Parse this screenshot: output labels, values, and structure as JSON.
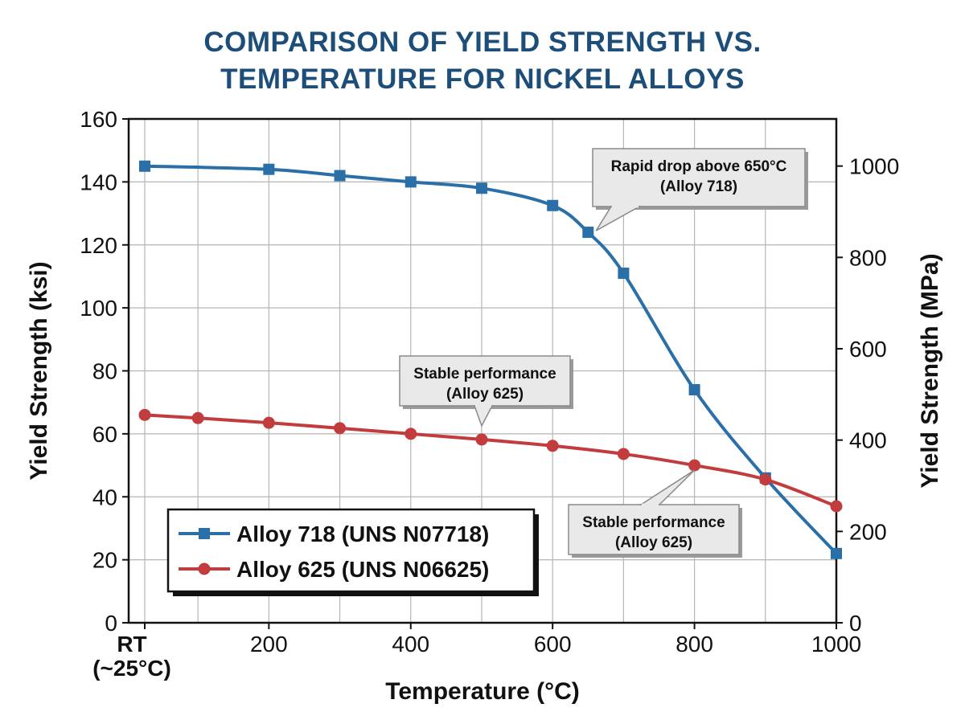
{
  "chart_data": {
    "type": "line",
    "title": [
      "COMPARISON OF YIELD STRENGTH VS.",
      "TEMPERATURE FOR NICKEL ALLOYS"
    ],
    "xlabel": "Temperature (°C)",
    "ylabel": "Yield Strength (ksi)",
    "y2label": "Yield Strength (MPa)",
    "xlim": [
      0,
      1000
    ],
    "ylim": [
      0,
      160
    ],
    "y2lim": [
      0,
      1103.2
    ],
    "x_ticks": [
      {
        "value": 25,
        "label": [
          "RT",
          "(~25°C)"
        ]
      },
      {
        "value": 200,
        "label": [
          "200"
        ]
      },
      {
        "value": 400,
        "label": [
          "400"
        ]
      },
      {
        "value": 600,
        "label": [
          "600"
        ]
      },
      {
        "value": 800,
        "label": [
          "800"
        ]
      },
      {
        "value": 1000,
        "label": [
          "1000"
        ]
      }
    ],
    "x_grid": [
      25,
      100,
      200,
      300,
      400,
      500,
      600,
      700,
      800,
      900,
      1000
    ],
    "y_ticks": [
      0,
      20,
      40,
      60,
      80,
      100,
      120,
      140,
      160
    ],
    "y2_ticks": [
      0,
      200,
      400,
      600,
      800,
      1000
    ],
    "grid": true,
    "legend_position": "bottom-left",
    "series": [
      {
        "name": "Alloy 718 (UNS N07718)",
        "color": "#2a6fa8",
        "marker": "square",
        "x": [
          25,
          200,
          300,
          400,
          500,
          600,
          650,
          700,
          800,
          900,
          1000
        ],
        "values": [
          145,
          144,
          142,
          140,
          138,
          132.5,
          124,
          111,
          74,
          46,
          22
        ]
      },
      {
        "name": "Alloy 625 (UNS N06625)",
        "color": "#c23b3d",
        "marker": "circle",
        "x": [
          25,
          100,
          200,
          300,
          400,
          500,
          600,
          700,
          800,
          900,
          1000
        ],
        "values": [
          66,
          65,
          63.5,
          61.8,
          60,
          58.2,
          56.2,
          53.6,
          50,
          45.5,
          37
        ]
      }
    ],
    "annotations": [
      {
        "text": [
          "Rapid drop above 650°C",
          "(Alloy 718)"
        ],
        "target": {
          "x": 650,
          "y": 124
        }
      },
      {
        "text": [
          "Stable performance",
          "(Alloy 625)"
        ],
        "target": {
          "x": 500,
          "y": 61
        }
      },
      {
        "text": [
          "Stable performance",
          "(Alloy 625)"
        ],
        "target": {
          "x": 800,
          "y": 50
        }
      }
    ]
  }
}
